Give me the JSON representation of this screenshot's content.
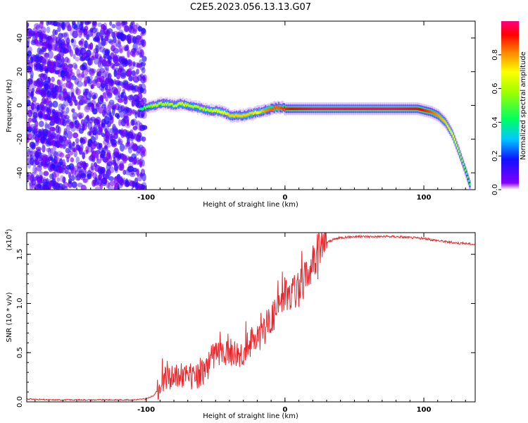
{
  "title": "C2E5.2023.056.13.13.G07",
  "chart_data": [
    {
      "type": "heatmap",
      "title": "C2E5.2023.056.13.13.G07",
      "xlabel": "Height of straight line (km)",
      "ylabel": "Frequency (Hz)",
      "xlim": [
        -186,
        137
      ],
      "ylim": [
        -50,
        50
      ],
      "xticks": [
        -100,
        0,
        100
      ],
      "xtick_labels": [
        "-100",
        "0",
        "100"
      ],
      "yticks": [
        -40,
        -20,
        0,
        20,
        40
      ],
      "ytick_labels": [
        "-40",
        "-20",
        "0",
        "20",
        "40"
      ],
      "noise_region_x": [
        -186,
        -101
      ],
      "ridge": {
        "x": [
          -105,
          -100,
          -95,
          -90,
          -85,
          -80,
          -75,
          -70,
          -65,
          -60,
          -55,
          -50,
          -45,
          -40,
          -35,
          -30,
          -25,
          -20,
          -15,
          -10,
          -5,
          0,
          10,
          20,
          40,
          60,
          80,
          95,
          100,
          105,
          110,
          115,
          120,
          125,
          130,
          133
        ],
        "freq": [
          -2,
          -1,
          0,
          1,
          1,
          0,
          1,
          0,
          -1,
          -2,
          -3,
          -3,
          -4,
          -6,
          -6,
          -6,
          -5,
          -4,
          -3,
          -2,
          -1,
          -2,
          -2,
          -2,
          -2,
          -2,
          -2,
          -2,
          -3,
          -4,
          -6,
          -10,
          -17,
          -28,
          -40,
          -48
        ],
        "amplitude": [
          0.4,
          0.5,
          0.6,
          0.6,
          0.6,
          0.6,
          0.65,
          0.6,
          0.6,
          0.6,
          0.6,
          0.65,
          0.7,
          0.75,
          0.75,
          0.75,
          0.75,
          0.7,
          0.8,
          0.85,
          0.85,
          0.9,
          0.95,
          1.0,
          1.0,
          1.0,
          1.0,
          0.95,
          0.9,
          0.85,
          0.8,
          0.75,
          0.7,
          0.6,
          0.5,
          0.45
        ]
      },
      "colorbar": {
        "label": "Normalized spectral amplitude",
        "range": [
          0.0,
          1.0
        ],
        "ticks": [
          0.0,
          0.2,
          0.4,
          0.6,
          0.8
        ],
        "tick_labels": [
          "0.0",
          "0.2",
          "0.4",
          "0.6",
          "0.8"
        ]
      }
    },
    {
      "type": "line",
      "xlabel": "Height of straight line (km)",
      "ylabel": "SNR (10 * v/v)",
      "multiplier_base": "(x10",
      "multiplier_exp": "4",
      "multiplier_close": ")",
      "xlim": [
        -186,
        137
      ],
      "ylim": [
        0.0,
        1.72
      ],
      "xticks": [
        -100,
        0,
        100
      ],
      "xtick_labels": [
        "-100",
        "0",
        "100"
      ],
      "yticks": [
        0.0,
        0.5,
        1.0,
        1.5
      ],
      "ytick_labels": [
        "0.0",
        "0.5",
        "1.0",
        "1.5"
      ],
      "color": "#e8262b",
      "series": [
        {
          "name": "SNR",
          "x": [
            -186,
            -170,
            -150,
            -130,
            -110,
            -100,
            -95,
            -90,
            -87,
            -84,
            -80,
            -75,
            -70,
            -65,
            -60,
            -55,
            -50,
            -45,
            -40,
            -35,
            -30,
            -25,
            -20,
            -15,
            -10,
            -5,
            0,
            5,
            10,
            15,
            20,
            25,
            30,
            35,
            40,
            50,
            60,
            70,
            80,
            90,
            100,
            110,
            120,
            130,
            137
          ],
          "y": [
            0.03,
            0.02,
            0.02,
            0.02,
            0.02,
            0.03,
            0.06,
            0.15,
            0.25,
            0.22,
            0.25,
            0.28,
            0.26,
            0.22,
            0.28,
            0.38,
            0.5,
            0.45,
            0.52,
            0.5,
            0.52,
            0.6,
            0.65,
            0.75,
            0.85,
            0.95,
            1.1,
            1.12,
            1.15,
            1.25,
            1.45,
            1.55,
            1.62,
            1.65,
            1.67,
            1.68,
            1.68,
            1.68,
            1.68,
            1.67,
            1.66,
            1.64,
            1.62,
            1.61,
            1.6
          ]
        }
      ]
    }
  ]
}
